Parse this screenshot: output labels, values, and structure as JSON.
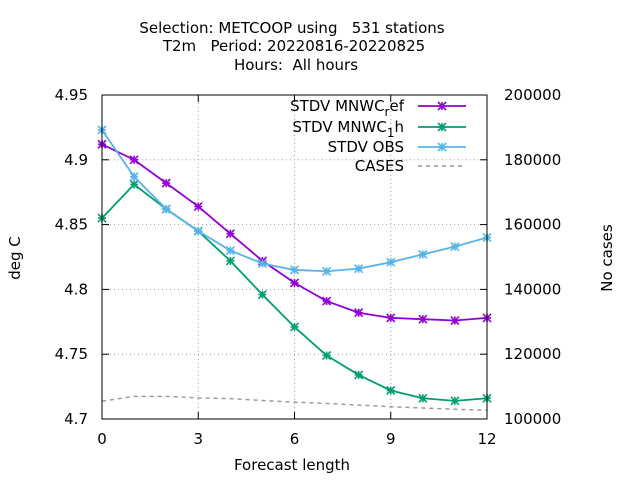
{
  "chart_data": {
    "type": "line",
    "title": [
      "Selection: METCOOP using   531 stations",
      "T2m   Period: 20220816-20220825",
      "Hours:  All hours"
    ],
    "xlabel": "Forecast length",
    "ylabel": "deg C",
    "y2label": "No cases",
    "xlim": [
      0,
      12
    ],
    "ylim": [
      4.7,
      4.95
    ],
    "y2lim": [
      100000,
      200000
    ],
    "xticks": [
      "0",
      "3",
      "6",
      "9",
      "12"
    ],
    "yticks": [
      "4.7",
      "4.75",
      "4.8",
      "4.85",
      "4.9",
      "4.95"
    ],
    "y2ticks": [
      "100000",
      "120000",
      "140000",
      "160000",
      "180000",
      "200000"
    ],
    "grid": true,
    "legend_position": "top-right",
    "x": [
      0,
      1,
      2,
      3,
      4,
      5,
      6,
      7,
      8,
      9,
      10,
      11,
      12
    ],
    "series": [
      {
        "name_parts": [
          "STDV MNWC",
          "r",
          "ef"
        ],
        "color": "#9400d3",
        "marker": "star",
        "axis": "y",
        "values": [
          4.912,
          4.9,
          4.882,
          4.864,
          4.843,
          4.822,
          4.805,
          4.791,
          4.782,
          4.778,
          4.777,
          4.776,
          4.778
        ]
      },
      {
        "name_parts": [
          "STDV MNWC",
          "1",
          "h"
        ],
        "color": "#009e73",
        "marker": "star",
        "axis": "y",
        "values": [
          4.855,
          4.881,
          4.862,
          4.845,
          4.822,
          4.796,
          4.771,
          4.749,
          4.734,
          4.722,
          4.716,
          4.714,
          4.716
        ]
      },
      {
        "name_parts": [
          "STDV OBS"
        ],
        "color": "#56b4e9",
        "marker": "star",
        "axis": "y",
        "values": [
          4.923,
          4.887,
          4.862,
          4.845,
          4.83,
          4.82,
          4.815,
          4.814,
          4.816,
          4.821,
          4.827,
          4.833,
          4.84
        ]
      },
      {
        "name_parts": [
          "CASES"
        ],
        "color": "#999999",
        "marker": "none",
        "dashed": true,
        "axis": "y2",
        "values": [
          105500,
          107000,
          107000,
          106500,
          106300,
          105700,
          105200,
          104800,
          104300,
          103800,
          103400,
          103000,
          102700
        ]
      }
    ]
  }
}
